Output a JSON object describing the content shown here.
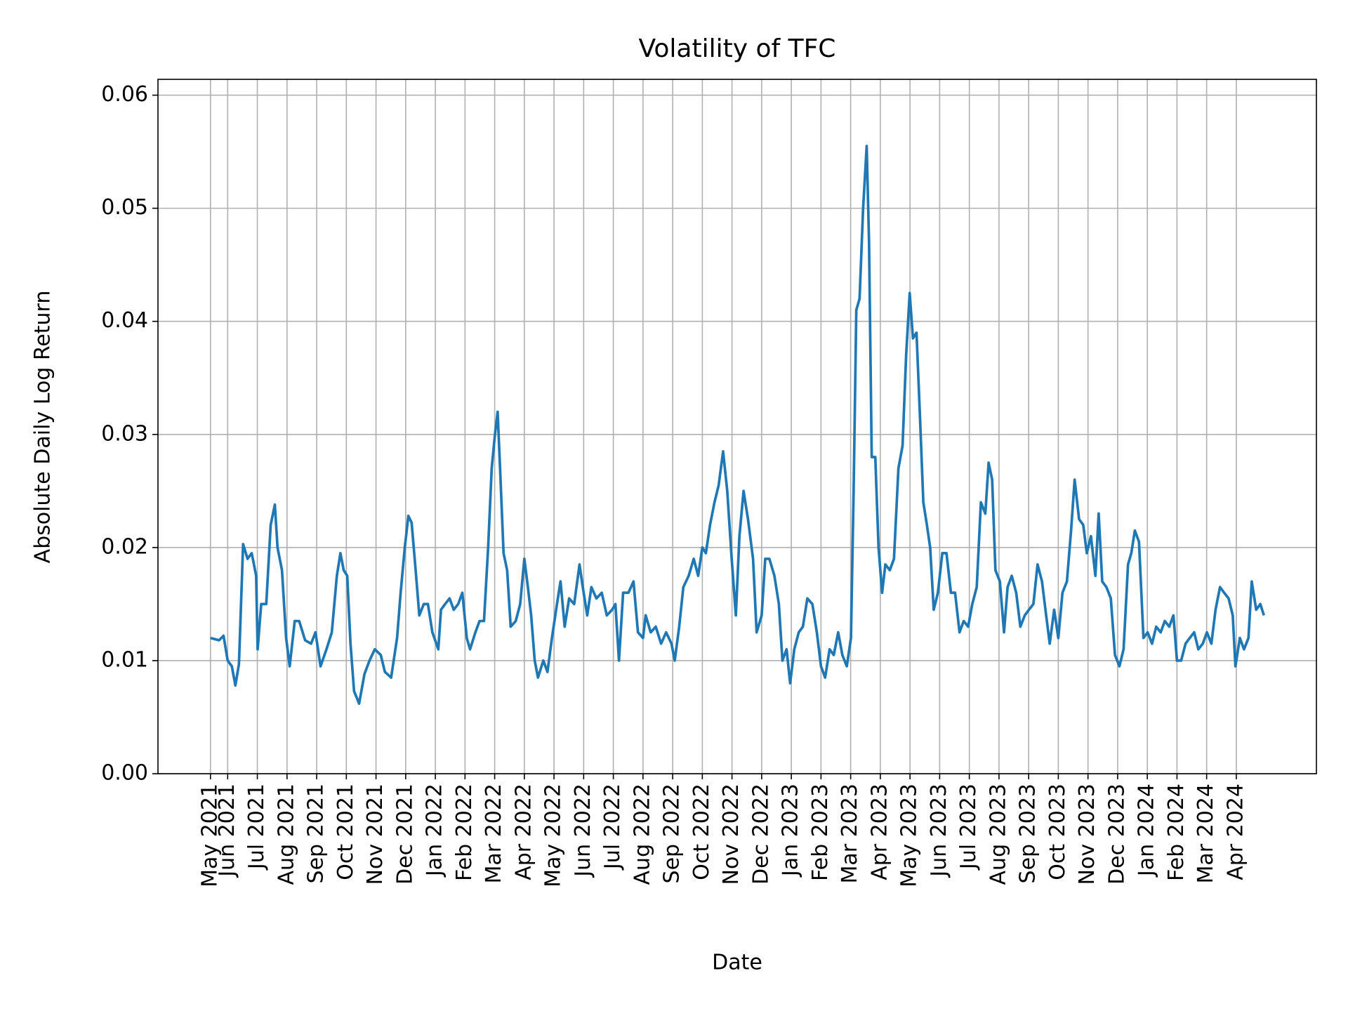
{
  "chart_data": {
    "type": "line",
    "title": "Volatility of TFC",
    "xlabel": "Date",
    "ylabel": "Absolute Daily Log Return",
    "color": "#1f77b4",
    "grid": true,
    "xlim": [
      -1.35,
      37.7
    ],
    "ylim": [
      0,
      0.0614
    ],
    "yticks": [
      {
        "value": 0,
        "label": "0.00"
      },
      {
        "value": 0.01,
        "label": "0.01"
      },
      {
        "value": 0.02,
        "label": "0.02"
      },
      {
        "value": 0.03,
        "label": "0.03"
      },
      {
        "value": 0.04,
        "label": "0.04"
      },
      {
        "value": 0.05,
        "label": "0.05"
      },
      {
        "value": 0.06,
        "label": "0.06"
      }
    ],
    "xticks": [
      {
        "value": 0.42,
        "label": "May 2021"
      },
      {
        "value": 1,
        "label": "Jun 2021"
      },
      {
        "value": 2,
        "label": "Jul 2021"
      },
      {
        "value": 3,
        "label": "Aug 2021"
      },
      {
        "value": 4,
        "label": "Sep 2021"
      },
      {
        "value": 5,
        "label": "Oct 2021"
      },
      {
        "value": 6,
        "label": "Nov 2021"
      },
      {
        "value": 7,
        "label": "Dec 2021"
      },
      {
        "value": 8,
        "label": "Jan 2022"
      },
      {
        "value": 9,
        "label": "Feb 2022"
      },
      {
        "value": 10,
        "label": "Mar 2022"
      },
      {
        "value": 11,
        "label": "Apr 2022"
      },
      {
        "value": 12,
        "label": "May 2022"
      },
      {
        "value": 13,
        "label": "Jun 2022"
      },
      {
        "value": 14,
        "label": "Jul 2022"
      },
      {
        "value": 15,
        "label": "Aug 2022"
      },
      {
        "value": 16,
        "label": "Sep 2022"
      },
      {
        "value": 17,
        "label": "Oct 2022"
      },
      {
        "value": 18,
        "label": "Nov 2022"
      },
      {
        "value": 19,
        "label": "Dec 2022"
      },
      {
        "value": 20,
        "label": "Jan 2023"
      },
      {
        "value": 21,
        "label": "Feb 2023"
      },
      {
        "value": 22,
        "label": "Mar 2023"
      },
      {
        "value": 23,
        "label": "Apr 2023"
      },
      {
        "value": 24,
        "label": "May 2023"
      },
      {
        "value": 25,
        "label": "Jun 2023"
      },
      {
        "value": 26,
        "label": "Jul 2023"
      },
      {
        "value": 27,
        "label": "Aug 2023"
      },
      {
        "value": 28,
        "label": "Sep 2023"
      },
      {
        "value": 29,
        "label": "Oct 2023"
      },
      {
        "value": 30,
        "label": "Nov 2023"
      },
      {
        "value": 31,
        "label": "Dec 2023"
      },
      {
        "value": 32,
        "label": "Jan 2024"
      },
      {
        "value": 33,
        "label": "Feb 2024"
      },
      {
        "value": 34,
        "label": "Mar 2024"
      },
      {
        "value": 35,
        "label": "Apr 2024"
      }
    ],
    "x": [
      0.42,
      0.71,
      0.86,
      1.0,
      1.14,
      1.26,
      1.38,
      1.52,
      1.67,
      1.81,
      1.96,
      2.01,
      2.13,
      2.3,
      2.45,
      2.59,
      2.68,
      2.83,
      2.97,
      3.09,
      3.26,
      3.41,
      3.61,
      3.81,
      3.96,
      4.13,
      4.33,
      4.51,
      4.68,
      4.8,
      4.91,
      5.03,
      5.14,
      5.26,
      5.43,
      5.61,
      5.78,
      5.96,
      6.16,
      6.3,
      6.51,
      6.71,
      6.83,
      6.97,
      7.09,
      7.2,
      7.32,
      7.46,
      7.61,
      7.75,
      7.9,
      8.1,
      8.19,
      8.33,
      8.48,
      8.62,
      8.77,
      8.91,
      9.06,
      9.17,
      9.35,
      9.49,
      9.64,
      9.78,
      9.9,
      10.01,
      10.1,
      10.19,
      10.3,
      10.42,
      10.54,
      10.71,
      10.86,
      11.0,
      11.12,
      11.23,
      11.35,
      11.46,
      11.64,
      11.78,
      11.93,
      12.1,
      12.22,
      12.36,
      12.51,
      12.68,
      12.86,
      12.97,
      13.12,
      13.26,
      13.43,
      13.61,
      13.78,
      13.96,
      14.07,
      14.19,
      14.33,
      14.51,
      14.68,
      14.83,
      15.0,
      15.09,
      15.26,
      15.43,
      15.61,
      15.78,
      15.96,
      16.07,
      16.22,
      16.36,
      16.54,
      16.71,
      16.86,
      17.0,
      17.12,
      17.26,
      17.41,
      17.55,
      17.7,
      17.84,
      17.99,
      18.13,
      18.25,
      18.39,
      18.54,
      18.71,
      18.83,
      19.0,
      19.12,
      19.26,
      19.43,
      19.58,
      19.7,
      19.84,
      19.96,
      20.1,
      20.25,
      20.39,
      20.54,
      20.71,
      20.86,
      21.0,
      21.14,
      21.29,
      21.43,
      21.58,
      21.72,
      21.87,
      22.01,
      22.1,
      22.19,
      22.3,
      22.42,
      22.54,
      22.62,
      22.71,
      22.83,
      22.94,
      23.06,
      23.17,
      23.32,
      23.46,
      23.61,
      23.75,
      23.87,
      23.99,
      24.1,
      24.22,
      24.33,
      24.45,
      24.57,
      24.68,
      24.8,
      24.94,
      25.09,
      25.23,
      25.38,
      25.52,
      25.67,
      25.81,
      25.96,
      26.1,
      26.25,
      26.39,
      26.54,
      26.65,
      26.77,
      26.88,
      27.03,
      27.17,
      27.29,
      27.43,
      27.58,
      27.72,
      27.87,
      28.01,
      28.16,
      28.3,
      28.45,
      28.59,
      28.71,
      28.86,
      29.0,
      29.14,
      29.29,
      29.43,
      29.55,
      29.7,
      29.84,
      29.96,
      30.1,
      30.25,
      30.36,
      30.48,
      30.62,
      30.77,
      30.91,
      31.06,
      31.2,
      31.35,
      31.46,
      31.58,
      31.72,
      31.87,
      32.01,
      32.16,
      32.3,
      32.45,
      32.59,
      32.74,
      32.88,
      33.0,
      33.14,
      33.29,
      33.43,
      33.58,
      33.72,
      33.87,
      34.01,
      34.16,
      34.3,
      34.45,
      34.59,
      34.74,
      34.88,
      34.97,
      35.12,
      35.26,
      35.41,
      35.52,
      35.67,
      35.81,
      35.93
    ],
    "values": [
      0.012,
      0.0118,
      0.0122,
      0.01,
      0.0095,
      0.0078,
      0.0097,
      0.0203,
      0.019,
      0.0195,
      0.0175,
      0.011,
      0.015,
      0.015,
      0.022,
      0.0238,
      0.02,
      0.018,
      0.012,
      0.0095,
      0.0135,
      0.0135,
      0.0118,
      0.0115,
      0.0125,
      0.0095,
      0.011,
      0.0125,
      0.0175,
      0.0195,
      0.018,
      0.0175,
      0.0115,
      0.0073,
      0.0062,
      0.0088,
      0.01,
      0.011,
      0.0105,
      0.009,
      0.0085,
      0.012,
      0.016,
      0.02,
      0.0228,
      0.0222,
      0.0185,
      0.014,
      0.015,
      0.015,
      0.0125,
      0.011,
      0.0145,
      0.015,
      0.0155,
      0.0145,
      0.015,
      0.016,
      0.012,
      0.011,
      0.0125,
      0.0135,
      0.0135,
      0.02,
      0.027,
      0.03,
      0.032,
      0.0265,
      0.0195,
      0.018,
      0.013,
      0.0135,
      0.015,
      0.019,
      0.0165,
      0.014,
      0.01,
      0.0085,
      0.01,
      0.009,
      0.012,
      0.015,
      0.017,
      0.013,
      0.0155,
      0.015,
      0.0185,
      0.0165,
      0.014,
      0.0165,
      0.0155,
      0.016,
      0.014,
      0.0145,
      0.015,
      0.01,
      0.016,
      0.016,
      0.017,
      0.0125,
      0.012,
      0.014,
      0.0125,
      0.013,
      0.0115,
      0.0125,
      0.0115,
      0.01,
      0.013,
      0.0165,
      0.0175,
      0.019,
      0.0175,
      0.02,
      0.0195,
      0.022,
      0.024,
      0.0255,
      0.0285,
      0.025,
      0.019,
      0.014,
      0.021,
      0.025,
      0.0225,
      0.019,
      0.0125,
      0.014,
      0.019,
      0.019,
      0.0175,
      0.015,
      0.01,
      0.011,
      0.008,
      0.011,
      0.0125,
      0.013,
      0.0155,
      0.015,
      0.0125,
      0.0095,
      0.0085,
      0.011,
      0.0105,
      0.0125,
      0.0105,
      0.0095,
      0.012,
      0.025,
      0.041,
      0.042,
      0.05,
      0.0555,
      0.047,
      0.028,
      0.028,
      0.02,
      0.016,
      0.0185,
      0.018,
      0.019,
      0.027,
      0.029,
      0.037,
      0.0425,
      0.0385,
      0.039,
      0.032,
      0.024,
      0.022,
      0.02,
      0.0145,
      0.016,
      0.0195,
      0.0195,
      0.016,
      0.016,
      0.0125,
      0.0135,
      0.013,
      0.015,
      0.0165,
      0.024,
      0.023,
      0.0275,
      0.026,
      0.018,
      0.017,
      0.0125,
      0.0165,
      0.0175,
      0.016,
      0.013,
      0.014,
      0.0145,
      0.015,
      0.0185,
      0.017,
      0.014,
      0.0115,
      0.0145,
      0.012,
      0.016,
      0.017,
      0.0215,
      0.026,
      0.0225,
      0.022,
      0.0195,
      0.021,
      0.0175,
      0.023,
      0.017,
      0.0165,
      0.0155,
      0.0105,
      0.0095,
      0.011,
      0.0185,
      0.0195,
      0.0215,
      0.0205,
      0.012,
      0.0125,
      0.0115,
      0.013,
      0.0125,
      0.0135,
      0.013,
      0.014,
      0.01,
      0.01,
      0.0115,
      0.012,
      0.0125,
      0.011,
      0.0115,
      0.0125,
      0.0115,
      0.0145,
      0.0165,
      0.016,
      0.0155,
      0.014,
      0.0095,
      0.012,
      0.011,
      0.012,
      0.017,
      0.0145,
      0.015,
      0.014
    ]
  }
}
